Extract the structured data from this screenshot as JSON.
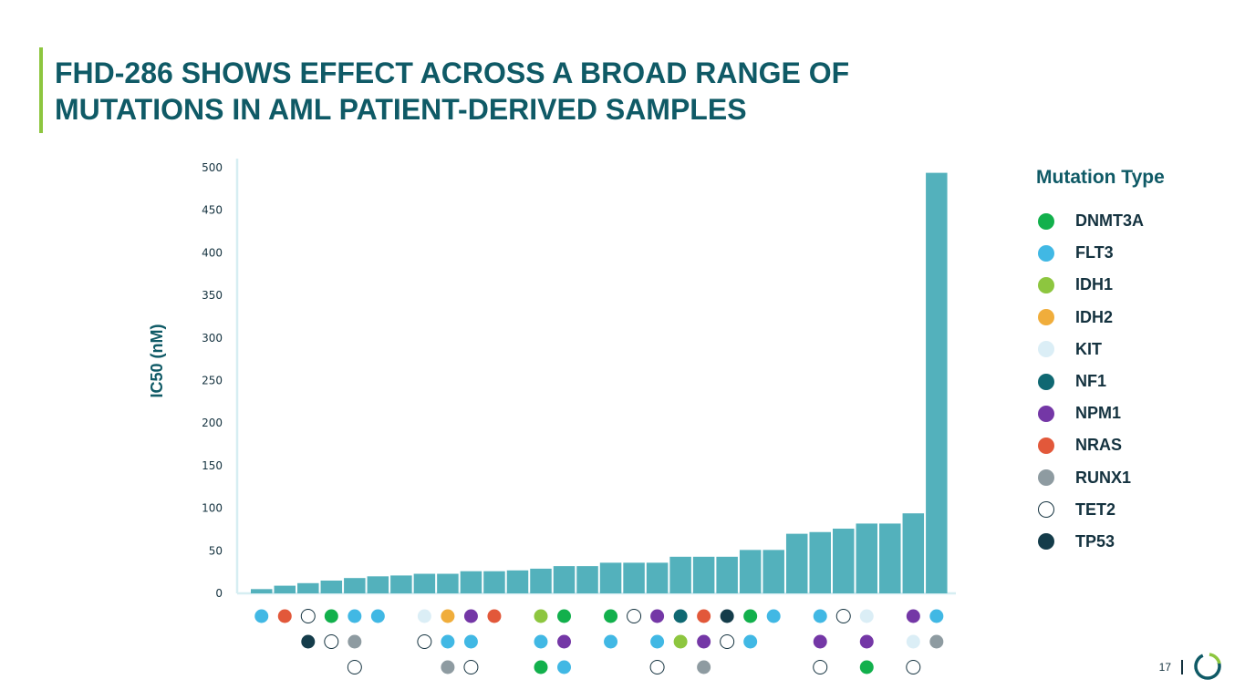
{
  "slide": {
    "title_line1": "FHD-286 SHOWS EFFECT ACROSS A BROAD RANGE OF",
    "title_line2": "MUTATIONS IN AML PATIENT-DERIVED SAMPLES",
    "page_number": "17"
  },
  "colors": {
    "accent": "#8dc63f",
    "title": "#0f5a66",
    "bar": "#53b1bc",
    "axis": "#d6eef2"
  },
  "legend": {
    "title": "Mutation Type",
    "items": [
      {
        "key": "DNMT3A",
        "label": "DNMT3A",
        "color": "#12b04c"
      },
      {
        "key": "FLT3",
        "label": "FLT3",
        "color": "#41b8e4"
      },
      {
        "key": "IDH1",
        "label": "IDH1",
        "color": "#8dc63f"
      },
      {
        "key": "IDH2",
        "label": "IDH2",
        "color": "#f0ad3b"
      },
      {
        "key": "KIT",
        "label": "KIT",
        "color": "#dbeef6"
      },
      {
        "key": "NF1",
        "label": "NF1",
        "color": "#0f6872"
      },
      {
        "key": "NPM1",
        "label": "NPM1",
        "color": "#7437a6"
      },
      {
        "key": "NRAS",
        "label": "NRAS",
        "color": "#e2583a"
      },
      {
        "key": "RUNX1",
        "label": "RUNX1",
        "color": "#8e9ba1"
      },
      {
        "key": "TET2",
        "label": "TET2",
        "color": "outline"
      },
      {
        "key": "TP53",
        "label": "TP53",
        "color": "#143c4a"
      }
    ]
  },
  "chart_data": {
    "type": "bar",
    "title": "",
    "xlabel": "",
    "ylabel": "IC50 (nM)",
    "ylim": [
      0,
      500
    ],
    "yticks": [
      0,
      50,
      100,
      150,
      200,
      250,
      300,
      350,
      400,
      450,
      500
    ],
    "values": [
      5,
      9,
      12,
      15,
      18,
      20,
      21,
      23,
      23,
      26,
      26,
      27,
      29,
      32,
      32,
      36,
      36,
      36,
      43,
      43,
      43,
      51,
      51,
      70,
      72,
      76,
      82,
      82,
      94,
      494
    ],
    "mutations": [
      [
        "FLT3"
      ],
      [
        "NRAS"
      ],
      [
        "TET2",
        "TP53"
      ],
      [
        "DNMT3A",
        "TET2"
      ],
      [
        "FLT3",
        "RUNX1",
        "TET2"
      ],
      [
        "FLT3"
      ],
      [],
      [
        "KIT",
        "TET2"
      ],
      [
        "IDH2",
        "FLT3",
        "RUNX1"
      ],
      [
        "NPM1",
        "FLT3",
        "TET2"
      ],
      [
        "NRAS"
      ],
      [],
      [
        "IDH1",
        "FLT3",
        "DNMT3A"
      ],
      [
        "DNMT3A",
        "NPM1",
        "FLT3"
      ],
      [],
      [
        "DNMT3A",
        "FLT3"
      ],
      [
        "TET2"
      ],
      [
        "NPM1",
        "FLT3",
        "TET2"
      ],
      [
        "NF1",
        "IDH1"
      ],
      [
        "NRAS",
        "NPM1",
        "RUNX1"
      ],
      [
        "TP53",
        "TET2"
      ],
      [
        "DNMT3A",
        "FLT3"
      ],
      [
        "FLT3"
      ],
      [],
      [
        "FLT3",
        "NPM1",
        "TET2"
      ],
      [
        "TET2"
      ],
      [
        "KIT",
        "NPM1",
        "DNMT3A"
      ],
      [],
      [
        "NPM1",
        "KIT",
        "TET2"
      ],
      [
        "FLT3",
        "RUNX1"
      ]
    ]
  }
}
